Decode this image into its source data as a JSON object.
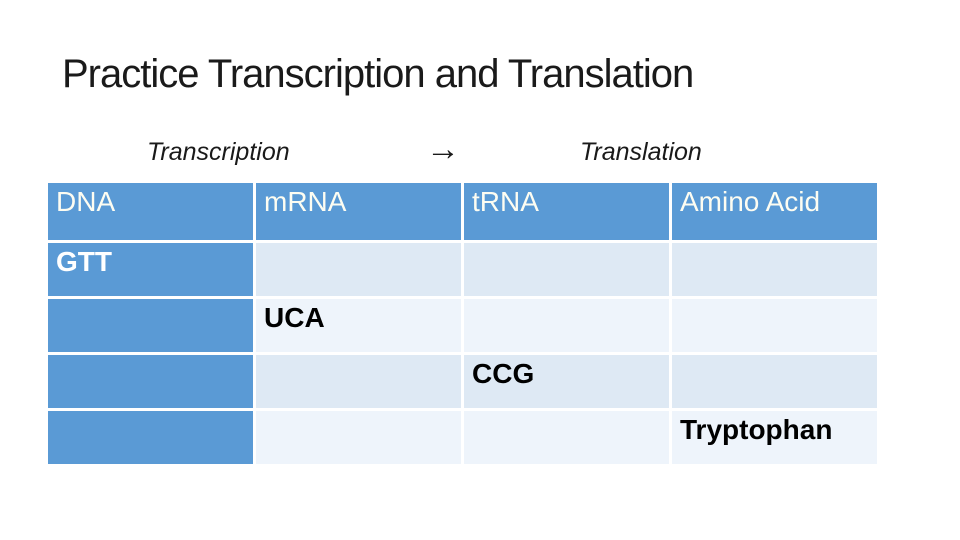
{
  "title": "Practice Transcription and Translation",
  "process_labels": {
    "transcription": "Transcription",
    "arrow": "→",
    "translation": "Translation"
  },
  "table": {
    "headers": [
      "DNA",
      "mRNA",
      "tRNA",
      "Amino Acid"
    ],
    "rows": [
      {
        "cells": [
          "GTT",
          "",
          "",
          ""
        ]
      },
      {
        "cells": [
          "",
          "UCA",
          "",
          ""
        ]
      },
      {
        "cells": [
          "",
          "",
          "CCG",
          ""
        ]
      },
      {
        "cells": [
          "",
          "",
          "",
          "Tryptophan"
        ]
      }
    ]
  },
  "colors": {
    "accent_blue": "#5A9AD5",
    "band_light": "#DEE9F4",
    "band_lighter": "#EEF4FB",
    "grid_white": "#FFFFFF",
    "text_dark": "#1A1A1A",
    "header_text": "#FFFFFF",
    "body_code_text": "#000000"
  }
}
